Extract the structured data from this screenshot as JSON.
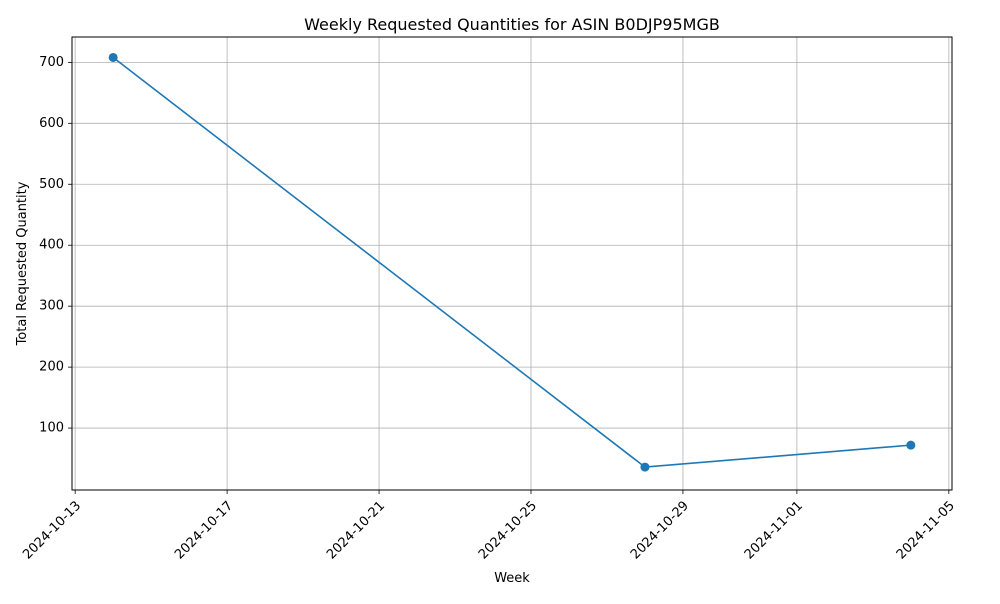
{
  "chart_data": {
    "type": "line",
    "title": "Weekly Requested Quantities for ASIN B0DJP95MGB",
    "xlabel": "Week",
    "ylabel": "Total Requested Quantity",
    "x": [
      "2024-10-14",
      "2024-10-28",
      "2024-11-04"
    ],
    "series": [
      {
        "values": [
          708,
          36,
          72
        ],
        "color": "#1f77b4",
        "marker": "circle"
      }
    ],
    "xlim": [
      "2024-10-12T22:00",
      "2024-11-05T02:00"
    ],
    "ylim": [
      -1.6,
      741.6
    ],
    "x_ticks": [
      "2024-10-13",
      "2024-10-17",
      "2024-10-21",
      "2024-10-25",
      "2024-10-29",
      "2024-11-01",
      "2024-11-05"
    ],
    "y_ticks": [
      100,
      200,
      300,
      400,
      500,
      600,
      700
    ],
    "grid": true,
    "legend": "none"
  }
}
